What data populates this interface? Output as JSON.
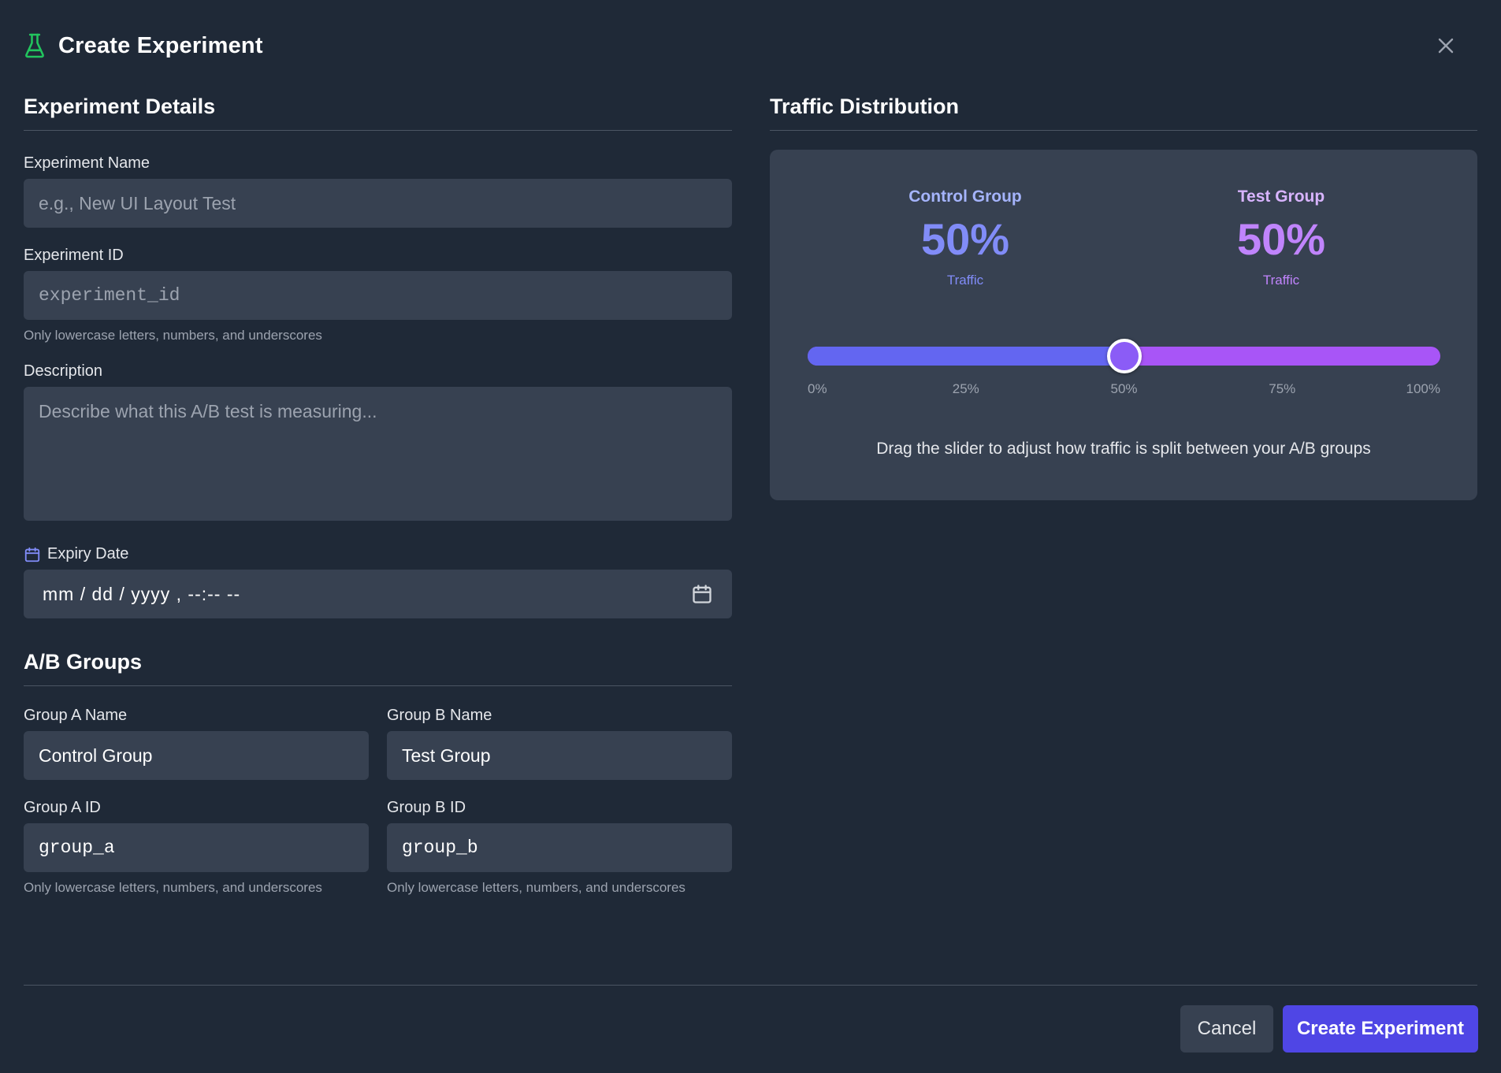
{
  "modal": {
    "title": "Create Experiment",
    "close_icon": "close-icon",
    "title_icon": "flask-icon"
  },
  "details": {
    "section_title": "Experiment Details",
    "name": {
      "label": "Experiment Name",
      "value": "",
      "placeholder": "e.g., New UI Layout Test"
    },
    "id": {
      "label": "Experiment ID",
      "value": "",
      "placeholder": "experiment_id",
      "hint": "Only lowercase letters, numbers, and underscores"
    },
    "description": {
      "label": "Description",
      "value": "",
      "placeholder": "Describe what this A/B test is measuring..."
    },
    "expiry": {
      "label": "Expiry Date",
      "value": "mm / dd / yyyy ,  --:--  --",
      "icon": "calendar-icon"
    }
  },
  "groups": {
    "section_title": "A/B Groups",
    "group_a_name": {
      "label": "Group A Name",
      "value": "Control Group"
    },
    "group_b_name": {
      "label": "Group B Name",
      "value": "Test Group"
    },
    "group_a_id": {
      "label": "Group A ID",
      "value": "group_a",
      "hint": "Only lowercase letters, numbers, and underscores"
    },
    "group_b_id": {
      "label": "Group B ID",
      "value": "group_b",
      "hint": "Only lowercase letters, numbers, and underscores"
    }
  },
  "traffic": {
    "section_title": "Traffic Distribution",
    "control": {
      "name": "Control Group",
      "percent": "50%",
      "caption": "Traffic"
    },
    "test": {
      "name": "Test Group",
      "percent": "50%",
      "caption": "Traffic"
    },
    "split_fraction": 0.5,
    "ticks": [
      "0%",
      "25%",
      "50%",
      "75%",
      "100%"
    ],
    "help": "Drag the slider to adjust how traffic is split between your A/B groups",
    "colors": {
      "control": "#6366f1",
      "test": "#a855f7"
    }
  },
  "footer": {
    "cancel_label": "Cancel",
    "create_label": "Create Experiment",
    "accent": "#4f46e5"
  }
}
